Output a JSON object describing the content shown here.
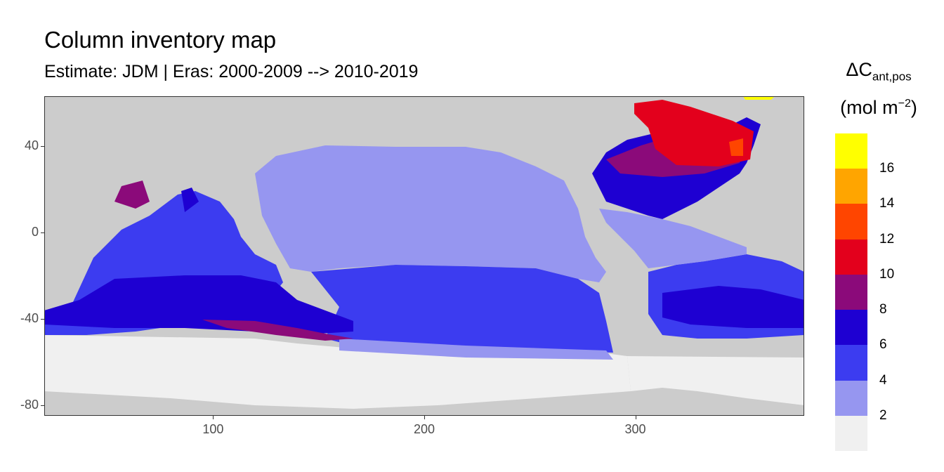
{
  "title": "Column inventory map",
  "subtitle": "Estimate: JDM  | Eras: 2000-2009 --> 2010-2019",
  "legend": {
    "title_main": "ΔC",
    "title_sub": "ant,pos",
    "units_pre": "(mol m",
    "units_sup": "−2",
    "units_post": ")",
    "labels": [
      "16",
      "14",
      "12",
      "10",
      "8",
      "6",
      "4",
      "2"
    ],
    "colors": [
      "#ffff00",
      "#ffa500",
      "#ff4500",
      "#e3001c",
      "#8b0a7a",
      "#1e00d2",
      "#3c3cf0",
      "#9696f0",
      "#f0f0f0"
    ]
  },
  "chart_data": {
    "type": "heatmap",
    "title": "Column inventory map",
    "subtitle": "Estimate: JDM  | Eras: 2000-2009 --> 2010-2019",
    "xlim": [
      20,
      380
    ],
    "ylim": [
      -85,
      63
    ],
    "x_ticks": [
      100,
      200,
      300
    ],
    "y_ticks": [
      40,
      0,
      -40,
      -80
    ],
    "x_tick_labels": [
      "100",
      "200",
      "300"
    ],
    "y_tick_labels": [
      "40",
      "0",
      "-40",
      "-80"
    ],
    "land_color": "#cccccc",
    "legend_breaks": [
      2,
      4,
      6,
      8,
      10,
      12,
      14,
      16
    ]
  }
}
